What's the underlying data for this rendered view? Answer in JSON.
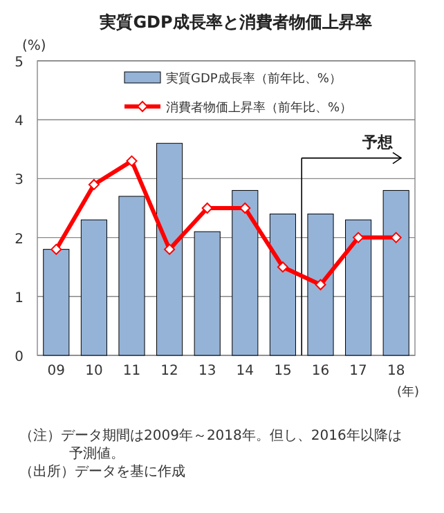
{
  "chart_data": {
    "type": "bar",
    "title": "実質GDP成長率と消費者物価上昇率",
    "ylabel": "(%)",
    "xlabel": "(年)",
    "categories": [
      "09",
      "10",
      "11",
      "12",
      "13",
      "14",
      "15",
      "16",
      "17",
      "18"
    ],
    "series": [
      {
        "name": "実質GDP成長率（前年比、%）",
        "color": "#95b3d7",
        "values": [
          1.8,
          2.3,
          2.7,
          3.6,
          2.1,
          2.8,
          2.4,
          2.4,
          2.3,
          2.8
        ]
      },
      {
        "name": "消費者物価上昇率（前年比、%）",
        "type": "line",
        "color": "#ff0000",
        "marker": "diamond",
        "values": [
          1.8,
          2.9,
          3.3,
          1.8,
          2.5,
          2.5,
          1.5,
          1.2,
          2.0,
          2.0
        ]
      }
    ],
    "ylim": [
      0,
      5
    ],
    "yticks": [
      0,
      1,
      2,
      3,
      4,
      5
    ],
    "grid": "y",
    "legend": "top",
    "ref_lines": [
      {
        "axis": "x",
        "value": "16",
        "label": "予想",
        "color": "#000000"
      }
    ],
    "annotations": [
      "（注）データ期間は2009年～2018年。但し、2016年以降は予測値。",
      "（出所）データを基に作成"
    ]
  }
}
